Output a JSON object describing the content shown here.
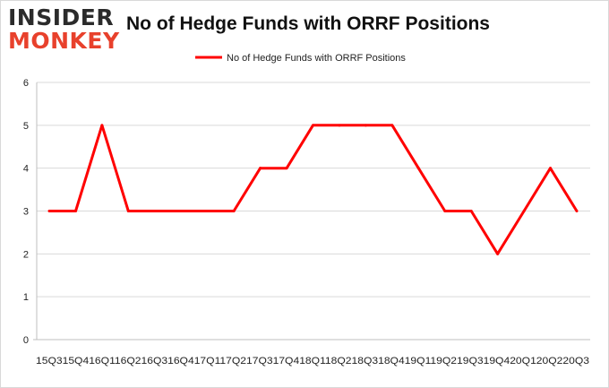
{
  "logo": {
    "line1": "INSIDER",
    "line2": "MONKEY"
  },
  "chart_data": {
    "type": "line",
    "title": "No of Hedge Funds with ORRF Positions",
    "xlabel": "",
    "ylabel": "",
    "categories": [
      "15Q3",
      "15Q4",
      "16Q1",
      "16Q2",
      "16Q3",
      "16Q4",
      "17Q1",
      "17Q2",
      "17Q3",
      "17Q4",
      "18Q1",
      "18Q2",
      "18Q3",
      "18Q4",
      "19Q1",
      "19Q2",
      "19Q3",
      "19Q4",
      "20Q1",
      "20Q2",
      "20Q3"
    ],
    "x_axis_text": "15Q315Q416Q116Q216Q316Q417Q117Q217Q317Q418Q118Q218Q318Q419Q119Q219Q319Q420Q120Q220Q3",
    "series": [
      {
        "name": "No of Hedge Funds with ORRF Positions",
        "color": "#ff0000",
        "values": [
          3,
          3,
          5,
          3,
          3,
          3,
          3,
          3,
          4,
          4,
          5,
          5,
          5,
          5,
          4,
          3,
          3,
          2,
          3,
          4,
          3
        ]
      }
    ],
    "ylim": [
      0,
      6
    ],
    "yticks": [
      0,
      1,
      2,
      3,
      4,
      5,
      6
    ],
    "grid": true,
    "legend_position": "top-center"
  }
}
